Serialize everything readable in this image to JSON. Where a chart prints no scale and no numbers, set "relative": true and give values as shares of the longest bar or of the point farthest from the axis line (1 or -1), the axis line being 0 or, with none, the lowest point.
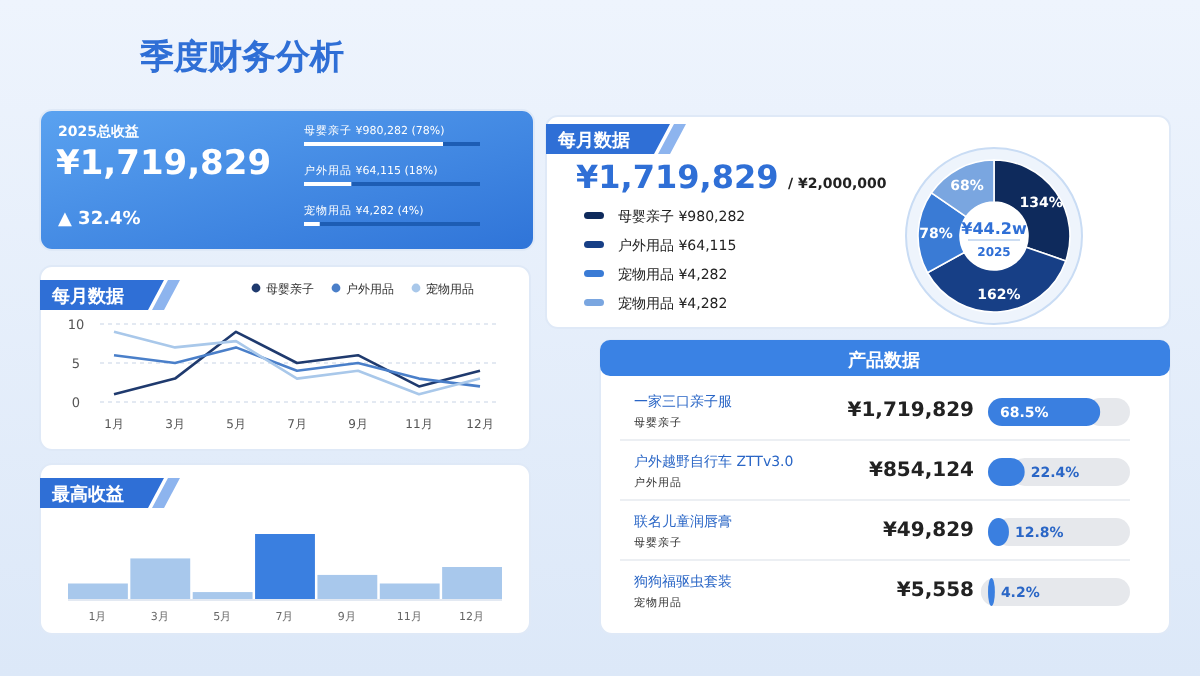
{
  "chart_data": [
    {
      "type": "other",
      "title": "季度财务分析"
    },
    {
      "type": "bar",
      "orientation": "horizontal",
      "relative": true,
      "annotations": [
        "2025总收益",
        "¥1,719,829",
        "▲ 32.4%"
      ],
      "categories": [
        "母婴亲子 ¥980,282 (78%)",
        "户外用品 ¥64,115 (18%)",
        "宠物用品 ¥4,282 (4%)"
      ],
      "stacked": true,
      "series": [
        {
          "color": "#ffffff",
          "values": [
            0.79,
            0.27,
            0.09
          ]
        },
        {
          "color": "#1d5db4",
          "values": [
            0.21,
            0.73,
            0.91
          ]
        }
      ],
      "tick_labels": "y"
    },
    {
      "type": "line",
      "title": "每月数据",
      "categories": [
        "1月",
        "3月",
        "5月",
        "7月",
        "9月",
        "11月",
        "12月"
      ],
      "ylim": [
        0,
        10
      ],
      "yticks": [
        0,
        5,
        10
      ],
      "grid": "y",
      "legend": "top right",
      "marker": "none",
      "line_style": "solid",
      "series": [
        {
          "name": "母婴亲子",
          "color": "#1f3a6e",
          "values": [
            1,
            3,
            9,
            5,
            6,
            2,
            4
          ]
        },
        {
          "name": "户外用品",
          "color": "#4a7fc9",
          "values": [
            6,
            5,
            7,
            4,
            5,
            3,
            2
          ]
        },
        {
          "name": "宠物用品",
          "color": "#a9c8ea",
          "values": [
            9,
            7,
            7.8,
            3,
            4,
            1,
            3
          ]
        }
      ]
    },
    {
      "type": "bar",
      "relative": true,
      "title": "最高收益",
      "categories": [
        "1月",
        "3月",
        "5月",
        "7月",
        "9月",
        "11月",
        "12月"
      ],
      "values": [
        0.25,
        0.63,
        0.12,
        1,
        0.38,
        0.25,
        0.5
      ],
      "colors": [
        "#a8c8ec",
        "#a8c8ec",
        "#a8c8ec",
        "#3a7fe0",
        "#a8c8ec",
        "#a8c8ec",
        "#a8c8ec"
      ]
    },
    {
      "type": "donut",
      "title": "每月数据",
      "annotations": [
        "¥1,719,829",
        "/ ¥2,000,000",
        "¥44.2w",
        "2025"
      ],
      "categories": [
        "母婴亲子 ¥980,282",
        "户外用品 ¥64,115",
        "宠物用品 ¥4,282",
        "宠物用品 ¥4,282"
      ],
      "values": [
        134,
        162,
        78,
        68
      ],
      "colors": [
        "#0e2a5c",
        "#173f86",
        "#3a7bd5",
        "#7aa6e0"
      ],
      "data_labels": true,
      "value_labels": [
        "134%",
        "162%",
        "78%",
        "68%"
      ],
      "legend": "left"
    },
    {
      "type": "bar",
      "orientation": "horizontal",
      "categories": [
        "一家三口亲子服",
        "户外越野自行车 ZTTv3.0",
        "联名儿童润唇膏",
        "狗狗福驱虫套装"
      ],
      "values": [
        68.5,
        22.4,
        12.8,
        4.2
      ],
      "color": "#3a7fe0",
      "value_labels": [
        "68.5%",
        "22.4%",
        "12.8%",
        "4.2%"
      ],
      "tick_labels": "y",
      "annotations": [
        "产品数据",
        "母婴亲子",
        "¥1,719,829",
        "户外用品",
        "¥854,124",
        "母婴亲子",
        "¥49,829",
        "宠物用品",
        "¥5,558"
      ]
    }
  ]
}
